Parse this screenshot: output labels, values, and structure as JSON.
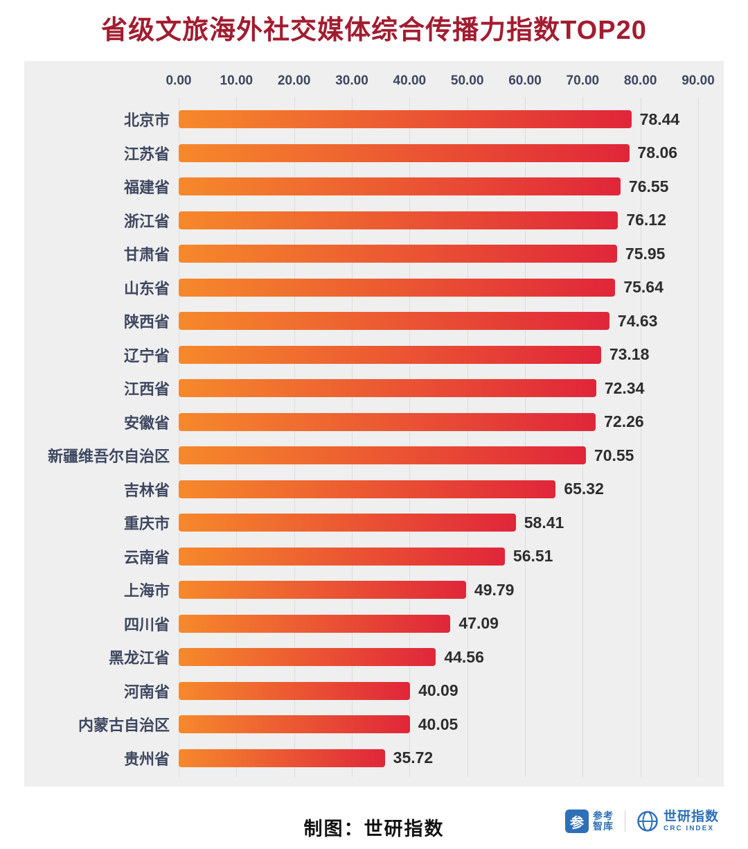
{
  "page": {
    "title": "省级文旅海外社交媒体综合传播力指数TOP20"
  },
  "chart_data": {
    "type": "bar",
    "orientation": "horizontal",
    "title": "省级文旅海外社交媒体综合传播力指数TOP20",
    "categories": [
      "北京市",
      "江苏省",
      "福建省",
      "浙江省",
      "甘肃省",
      "山东省",
      "陕西省",
      "辽宁省",
      "江西省",
      "安徽省",
      "新疆维吾尔自治区",
      "吉林省",
      "重庆市",
      "云南省",
      "上海市",
      "四川省",
      "黑龙江省",
      "河南省",
      "内蒙古自治区",
      "贵州省"
    ],
    "values": [
      78.44,
      78.06,
      76.55,
      76.12,
      75.95,
      75.64,
      74.63,
      73.18,
      72.34,
      72.26,
      70.55,
      65.32,
      58.41,
      56.51,
      49.79,
      47.09,
      44.56,
      40.09,
      40.05,
      35.72
    ],
    "xlim": [
      0,
      90
    ],
    "x_ticks": [
      "0.00",
      "10.00",
      "20.00",
      "30.00",
      "40.00",
      "50.00",
      "60.00",
      "70.00",
      "80.00",
      "90.00"
    ],
    "grid": true,
    "legend": false,
    "plot_background": "#efefef",
    "bar_gradient": [
      "#F6892B",
      "#E0263A"
    ],
    "title_color": "#A21C30",
    "label_color": "#3e4760"
  },
  "footer": {
    "credit": "制图：世研指数",
    "logo1_icon_glyph": "参",
    "logo1_line1": "参考",
    "logo1_line2": "智库",
    "logo2_icon": "globe-icon",
    "logo2_name": "世研指数",
    "logo2_sub": "CRC INDEX"
  }
}
